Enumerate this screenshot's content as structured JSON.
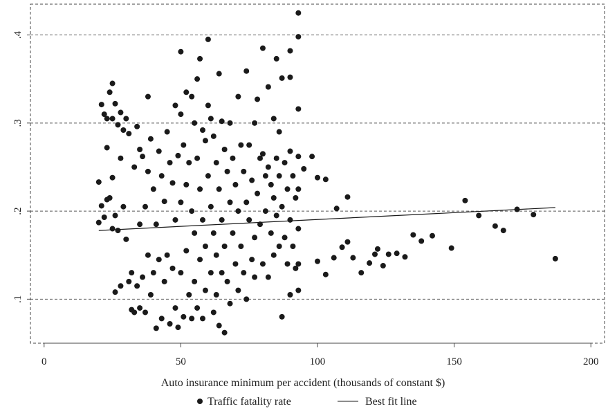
{
  "chart_data": {
    "type": "scatter",
    "title": "",
    "xlabel": "Auto insurance minimum per accident (thousands of constant $)",
    "ylabel": "",
    "xlim": [
      -5,
      205
    ],
    "ylim": [
      0.05,
      0.435
    ],
    "xticks": [
      0,
      50,
      100,
      150,
      200
    ],
    "xtick_labels": [
      "0",
      "50",
      "100",
      "150",
      "200"
    ],
    "yticks": [
      0.1,
      0.2,
      0.3,
      0.4
    ],
    "ytick_labels": [
      ".1",
      ".2",
      ".3",
      ".4"
    ],
    "grid": "horizontal dashed",
    "legend_position": "bottom",
    "colors": {
      "points": "#1a1a1a",
      "line": "#1a1a1a",
      "grid": "#555555"
    },
    "series": [
      {
        "name": "Traffic fatality rate",
        "kind": "scatter",
        "points": [
          [
            20,
            0.233
          ],
          [
            20,
            0.187
          ],
          [
            21,
            0.321
          ],
          [
            21,
            0.206
          ],
          [
            22,
            0.31
          ],
          [
            22,
            0.193
          ],
          [
            23,
            0.305
          ],
          [
            23,
            0.272
          ],
          [
            23,
            0.213
          ],
          [
            24,
            0.335
          ],
          [
            24,
            0.215
          ],
          [
            25,
            0.345
          ],
          [
            25,
            0.305
          ],
          [
            25,
            0.238
          ],
          [
            25,
            0.18
          ],
          [
            26,
            0.322
          ],
          [
            26,
            0.195
          ],
          [
            26,
            0.108
          ],
          [
            27,
            0.298
          ],
          [
            27,
            0.178
          ],
          [
            28,
            0.312
          ],
          [
            28,
            0.26
          ],
          [
            28,
            0.115
          ],
          [
            29,
            0.292
          ],
          [
            29,
            0.205
          ],
          [
            30,
            0.305
          ],
          [
            30,
            0.168
          ],
          [
            31,
            0.288
          ],
          [
            31,
            0.12
          ],
          [
            32,
            0.13
          ],
          [
            32,
            0.088
          ],
          [
            33,
            0.25
          ],
          [
            33,
            0.085
          ],
          [
            34,
            0.296
          ],
          [
            34,
            0.115
          ],
          [
            35,
            0.27
          ],
          [
            35,
            0.185
          ],
          [
            35,
            0.09
          ],
          [
            36,
            0.262
          ],
          [
            36,
            0.125
          ],
          [
            37,
            0.205
          ],
          [
            37,
            0.085
          ],
          [
            38,
            0.33
          ],
          [
            38,
            0.245
          ],
          [
            38,
            0.15
          ],
          [
            39,
            0.282
          ],
          [
            39,
            0.105
          ],
          [
            40,
            0.225
          ],
          [
            40,
            0.13
          ],
          [
            41,
            0.185
          ],
          [
            41,
            0.067
          ],
          [
            42,
            0.268
          ],
          [
            42,
            0.145
          ],
          [
            43,
            0.24
          ],
          [
            43,
            0.078
          ],
          [
            44,
            0.211
          ],
          [
            44,
            0.12
          ],
          [
            45,
            0.29
          ],
          [
            45,
            0.15
          ],
          [
            46,
            0.255
          ],
          [
            46,
            0.072
          ],
          [
            47,
            0.232
          ],
          [
            47,
            0.135
          ],
          [
            48,
            0.32
          ],
          [
            48,
            0.19
          ],
          [
            48,
            0.09
          ],
          [
            49,
            0.263
          ],
          [
            49,
            0.068
          ],
          [
            50,
            0.381
          ],
          [
            50,
            0.31
          ],
          [
            50,
            0.21
          ],
          [
            50,
            0.13
          ],
          [
            51,
            0.275
          ],
          [
            51,
            0.08
          ],
          [
            52,
            0.335
          ],
          [
            52,
            0.23
          ],
          [
            52,
            0.155
          ],
          [
            53,
            0.255
          ],
          [
            53,
            0.105
          ],
          [
            54,
            0.33
          ],
          [
            54,
            0.2
          ],
          [
            54,
            0.078
          ],
          [
            55,
            0.3
          ],
          [
            55,
            0.175
          ],
          [
            55,
            0.12
          ],
          [
            56,
            0.35
          ],
          [
            56,
            0.26
          ],
          [
            56,
            0.09
          ],
          [
            57,
            0.373
          ],
          [
            57,
            0.225
          ],
          [
            57,
            0.145
          ],
          [
            58,
            0.292
          ],
          [
            58,
            0.19
          ],
          [
            58,
            0.078
          ],
          [
            59,
            0.28
          ],
          [
            59,
            0.16
          ],
          [
            59,
            0.11
          ],
          [
            60,
            0.395
          ],
          [
            60,
            0.32
          ],
          [
            60,
            0.24
          ],
          [
            61,
            0.305
          ],
          [
            61,
            0.205
          ],
          [
            61,
            0.13
          ],
          [
            62,
            0.285
          ],
          [
            62,
            0.175
          ],
          [
            62,
            0.085
          ],
          [
            63,
            0.255
          ],
          [
            63,
            0.15
          ],
          [
            63,
            0.105
          ],
          [
            64,
            0.356
          ],
          [
            64,
            0.225
          ],
          [
            64,
            0.07
          ],
          [
            65,
            0.302
          ],
          [
            65,
            0.19
          ],
          [
            65,
            0.13
          ],
          [
            66,
            0.27
          ],
          [
            66,
            0.16
          ],
          [
            66,
            0.062
          ],
          [
            67,
            0.245
          ],
          [
            67,
            0.12
          ],
          [
            68,
            0.3
          ],
          [
            68,
            0.21
          ],
          [
            68,
            0.095
          ],
          [
            69,
            0.26
          ],
          [
            69,
            0.175
          ],
          [
            70,
            0.23
          ],
          [
            70,
            0.14
          ],
          [
            71,
            0.33
          ],
          [
            71,
            0.2
          ],
          [
            71,
            0.11
          ],
          [
            72,
            0.275
          ],
          [
            72,
            0.16
          ],
          [
            73,
            0.245
          ],
          [
            73,
            0.13
          ],
          [
            74,
            0.359
          ],
          [
            74,
            0.21
          ],
          [
            74,
            0.1
          ],
          [
            75,
            0.275
          ],
          [
            75,
            0.19
          ],
          [
            76,
            0.235
          ],
          [
            76,
            0.145
          ],
          [
            77,
            0.3
          ],
          [
            77,
            0.17
          ],
          [
            77,
            0.125
          ],
          [
            78,
            0.327
          ],
          [
            78,
            0.22
          ],
          [
            79,
            0.26
          ],
          [
            79,
            0.185
          ],
          [
            80,
            0.385
          ],
          [
            80,
            0.265
          ],
          [
            80,
            0.14
          ],
          [
            81,
            0.24
          ],
          [
            81,
            0.2
          ],
          [
            82,
            0.341
          ],
          [
            82,
            0.25
          ],
          [
            82,
            0.125
          ],
          [
            83,
            0.23
          ],
          [
            83,
            0.175
          ],
          [
            84,
            0.305
          ],
          [
            84,
            0.215
          ],
          [
            84,
            0.15
          ],
          [
            85,
            0.373
          ],
          [
            85,
            0.26
          ],
          [
            85,
            0.195
          ],
          [
            86,
            0.29
          ],
          [
            86,
            0.24
          ],
          [
            86,
            0.16
          ],
          [
            87,
            0.351
          ],
          [
            87,
            0.205
          ],
          [
            87,
            0.08
          ],
          [
            88,
            0.255
          ],
          [
            88,
            0.17
          ],
          [
            89,
            0.225
          ],
          [
            89,
            0.14
          ],
          [
            90,
            0.382
          ],
          [
            90,
            0.352
          ],
          [
            90,
            0.268
          ],
          [
            90,
            0.19
          ],
          [
            90,
            0.105
          ],
          [
            91,
            0.24
          ],
          [
            91,
            0.16
          ],
          [
            92,
            0.215
          ],
          [
            92,
            0.135
          ],
          [
            93,
            0.425
          ],
          [
            93,
            0.398
          ],
          [
            93,
            0.316
          ],
          [
            93,
            0.262
          ],
          [
            93,
            0.225
          ],
          [
            93,
            0.18
          ],
          [
            93,
            0.14
          ],
          [
            93,
            0.11
          ],
          [
            95,
            0.248
          ],
          [
            98,
            0.262
          ],
          [
            100,
            0.238
          ],
          [
            100,
            0.143
          ],
          [
            103,
            0.236
          ],
          [
            103,
            0.128
          ],
          [
            106,
            0.147
          ],
          [
            107,
            0.203
          ],
          [
            109,
            0.159
          ],
          [
            111,
            0.216
          ],
          [
            111,
            0.165
          ],
          [
            113,
            0.147
          ],
          [
            116,
            0.13
          ],
          [
            119,
            0.141
          ],
          [
            121,
            0.151
          ],
          [
            122,
            0.157
          ],
          [
            124,
            0.138
          ],
          [
            126,
            0.151
          ],
          [
            129,
            0.152
          ],
          [
            132,
            0.148
          ],
          [
            135,
            0.173
          ],
          [
            138,
            0.166
          ],
          [
            142,
            0.172
          ],
          [
            149,
            0.158
          ],
          [
            154,
            0.212
          ],
          [
            159,
            0.195
          ],
          [
            165,
            0.183
          ],
          [
            168,
            0.178
          ],
          [
            173,
            0.202
          ],
          [
            179,
            0.196
          ],
          [
            187,
            0.146
          ]
        ]
      },
      {
        "name": "Best fit line",
        "kind": "line",
        "points": [
          [
            20,
            0.178
          ],
          [
            187,
            0.204
          ]
        ]
      }
    ]
  }
}
